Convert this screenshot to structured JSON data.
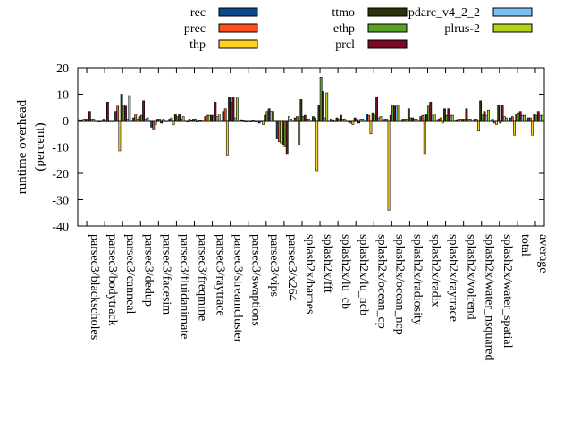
{
  "chart_data": {
    "type": "bar",
    "ylabel_lines": [
      "runtime overhead",
      "(percent)"
    ],
    "ylim": [
      -40,
      20
    ],
    "yticks": [
      20,
      10,
      0,
      -10,
      -20,
      -30,
      -40
    ],
    "categories": [
      "parsec3/blackscholes",
      "parsec3/bodytrack",
      "parsec3/canneal",
      "parsec3/dedup",
      "parsec3/facesim",
      "parsec3/fluidanimate",
      "parsec3/freqmine",
      "parsec3/raytrace",
      "parsec3/streamcluster",
      "parsec3/swaptions",
      "parsec3/vips",
      "parsec3/x264",
      "splash2x/barnes",
      "splash2x/fft",
      "splash2x/lu_cb",
      "splash2x/lu_ncb",
      "splash2x/ocean_cp",
      "splash2x/ocean_ncp",
      "splash2x/radiosity",
      "splash2x/radix",
      "splash2x/raytrace",
      "splash2x/volrend",
      "splash2x/water_nsquared",
      "splash2x/water_spatial",
      "total",
      "average"
    ],
    "series": [
      {
        "name": "rec",
        "color": "#0b4a8c",
        "values": [
          0.3,
          -0.5,
          3.5,
          1.0,
          -2.5,
          0.5,
          -0.3,
          1.5,
          3.5,
          0.3,
          -1.0,
          -7.0,
          1.0,
          1.5,
          0.5,
          -0.5,
          2.5,
          0.5,
          0.5,
          1.5,
          0.5,
          0.3,
          0.5,
          0.5,
          1.0,
          1.0
        ]
      },
      {
        "name": "prec",
        "color": "#ff4f1a",
        "values": [
          0.2,
          -0.3,
          5.5,
          2.5,
          -3.5,
          1.0,
          0.5,
          2.0,
          4.5,
          0.2,
          -0.5,
          -8.0,
          1.5,
          1.0,
          0.3,
          -1.0,
          2.0,
          0.5,
          0.5,
          2.0,
          1.0,
          0.5,
          0.5,
          -1.0,
          1.5,
          1.0
        ]
      },
      {
        "name": "thp",
        "color": "#ffd21f",
        "values": [
          0.5,
          -0.5,
          -11.5,
          0.5,
          -1.5,
          -1.5,
          0.2,
          2.0,
          -13.0,
          -0.3,
          -1.5,
          -8.5,
          -9.0,
          -19.0,
          -0.5,
          -1.5,
          -5.0,
          -34.0,
          0.5,
          -12.5,
          -1.0,
          0.5,
          -4.0,
          -1.5,
          -5.5,
          -5.5
        ]
      },
      {
        "name": "ttmo",
        "color": "#2d330a",
        "values": [
          0.5,
          0.5,
          10.0,
          1.5,
          0.5,
          2.5,
          0.5,
          2.0,
          9.0,
          -0.5,
          2.0,
          -9.0,
          8.0,
          6.0,
          1.0,
          1.0,
          3.0,
          2.0,
          4.5,
          2.5,
          4.5,
          0.5,
          7.5,
          6.0,
          2.5,
          2.5
        ]
      },
      {
        "name": "ethp",
        "color": "#58a327",
        "values": [
          0.5,
          -0.5,
          6.0,
          2.0,
          0.5,
          1.5,
          0.5,
          2.0,
          7.0,
          -0.5,
          3.5,
          -10.0,
          1.5,
          16.5,
          0.5,
          0.5,
          2.5,
          6.0,
          1.0,
          5.5,
          2.0,
          0.5,
          2.5,
          -1.0,
          3.0,
          2.0
        ]
      },
      {
        "name": "prcl",
        "color": "#7a0b26",
        "values": [
          3.5,
          7.0,
          5.5,
          7.5,
          -1.0,
          2.5,
          -0.5,
          7.0,
          9.0,
          -0.5,
          4.5,
          -12.5,
          2.0,
          11.0,
          2.0,
          -1.0,
          9.0,
          5.5,
          1.0,
          7.0,
          4.5,
          4.5,
          3.5,
          6.0,
          3.5,
          3.5
        ]
      },
      {
        "name": "pdarc_v4_2_2",
        "color": "#7bbff3",
        "values": [
          0.5,
          -0.5,
          0.5,
          0.5,
          0.5,
          0.5,
          0.2,
          1.5,
          1.0,
          0.2,
          3.5,
          1.5,
          0.5,
          1.0,
          0.5,
          0.5,
          1.0,
          5.5,
          0.5,
          2.0,
          2.0,
          0.5,
          2.0,
          1.5,
          2.0,
          2.0
        ]
      },
      {
        "name": "plrus-2",
        "color": "#b5d316",
        "values": [
          0.5,
          -0.5,
          9.5,
          1.0,
          -0.5,
          1.5,
          0.2,
          2.5,
          9.0,
          -0.3,
          3.5,
          0.5,
          0.5,
          10.5,
          0.5,
          0.5,
          1.5,
          6.0,
          0.5,
          2.5,
          2.0,
          0.5,
          4.0,
          1.0,
          2.0,
          2.0
        ]
      }
    ]
  }
}
